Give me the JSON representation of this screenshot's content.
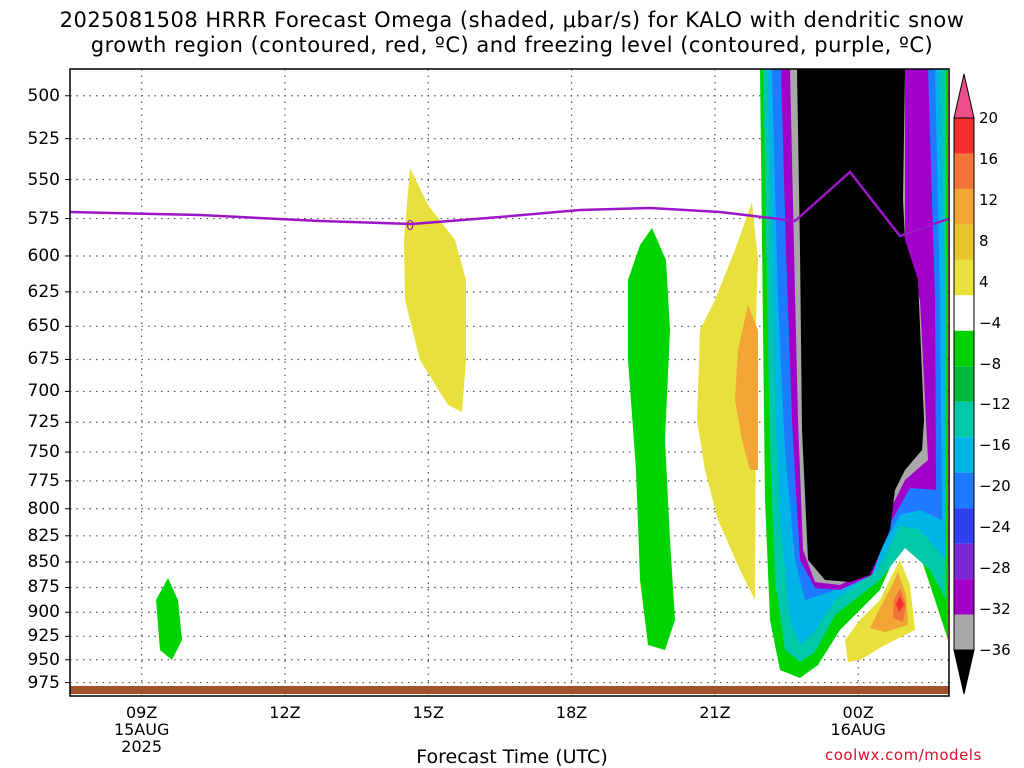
{
  "title_line1": "2025081508 HRRR Forecast Omega (shaded, μbar/s) for KALO with dendritic snow",
  "title_line2": "growth region (contoured, red, ºC) and freezing level (contoured, purple, ºC)",
  "chart_data": {
    "type": "heatmap",
    "xlabel": "Forecast Time (UTC)",
    "ylabel": "",
    "y_ticks": [
      500,
      525,
      550,
      575,
      600,
      625,
      650,
      675,
      700,
      725,
      750,
      775,
      800,
      825,
      850,
      875,
      900,
      925,
      950,
      975
    ],
    "y_range_hPa": [
      485,
      990
    ],
    "x_range_hours": [
      7.5,
      25.9
    ],
    "x_ticks": [
      {
        "hour": 9,
        "lines": [
          "09Z",
          "15AUG",
          "2025"
        ]
      },
      {
        "hour": 12,
        "lines": [
          "12Z"
        ]
      },
      {
        "hour": 15,
        "lines": [
          "15Z"
        ]
      },
      {
        "hour": 18,
        "lines": [
          "18Z"
        ]
      },
      {
        "hour": 21,
        "lines": [
          "21Z"
        ]
      },
      {
        "hour": 24,
        "lines": [
          "00Z",
          "16AUG"
        ]
      }
    ],
    "colorbar_levels": [
      "20",
      "16",
      "12",
      "8",
      "4",
      "−4",
      "−8",
      "−12",
      "−16",
      "−20",
      "−24",
      "−28",
      "−32",
      "−36"
    ],
    "colorbar_colors": [
      "#f0508a",
      "#f42e2e",
      "#f2733a",
      "#f1a534",
      "#e6c62c",
      "#e8e03c",
      "#ffffff",
      "#00d400",
      "#00b83c",
      "#00c8a8",
      "#00b4e8",
      "#1e7aff",
      "#2e40f0",
      "#7a28d2",
      "#a000c8",
      "#a8a8a8",
      "#000000"
    ],
    "freezing_level": {
      "label": "0",
      "points": [
        [
          7.5,
          573
        ],
        [
          9,
          574
        ],
        [
          12,
          577
        ],
        [
          15,
          581
        ],
        [
          18,
          574
        ],
        [
          20,
          571
        ],
        [
          21.5,
          574
        ],
        [
          23,
          580
        ],
        [
          24,
          548
        ],
        [
          25,
          590
        ],
        [
          25.9,
          579
        ]
      ]
    },
    "omega_regions": [
      {
        "omega": "4 to 8",
        "hours": [
          14.8,
          16.0
        ],
        "hPa": [
          545,
          720
        ]
      },
      {
        "omega": "-4 to -8",
        "hours": [
          9.8,
          10.3
        ],
        "hPa": [
          870,
          945
        ]
      },
      {
        "omega": "-4 to -8",
        "hours": [
          19.5,
          20.4
        ],
        "hPa": [
          585,
          940
        ]
      },
      {
        "omega": "4 to 12",
        "hours": [
          21.0,
          22.1
        ],
        "hPa": [
          590,
          890
        ]
      },
      {
        "omega": "-4 to -36+",
        "hours": [
          22.2,
          25.9
        ],
        "hPa": [
          485,
          975
        ]
      },
      {
        "omega": "4 to 20",
        "hours": [
          24.0,
          25.2
        ],
        "hPa": [
          865,
          960
        ]
      }
    ]
  },
  "credit": "coolwx.com/models"
}
